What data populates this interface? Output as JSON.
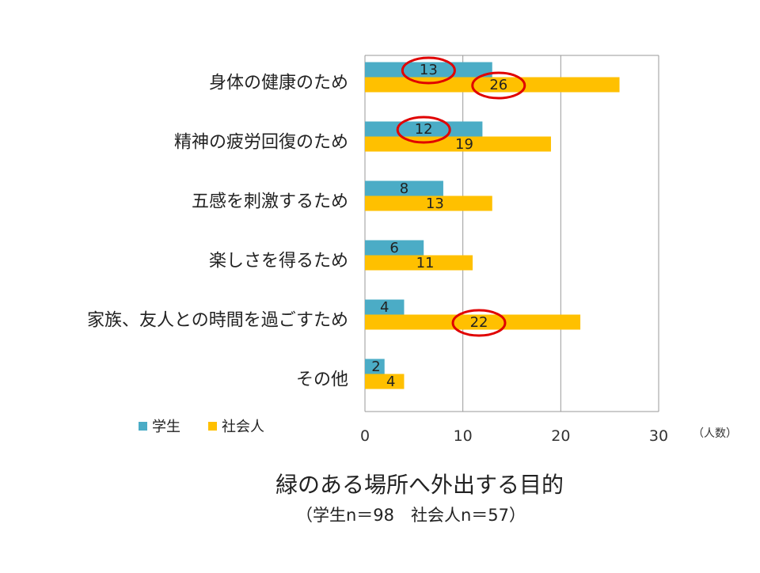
{
  "chart_data": {
    "type": "bar",
    "orientation": "horizontal",
    "title": "緑のある場所へ外出する目的",
    "subtitle": "（学生n＝98　社会人n＝57）",
    "unit_label": "（人数）",
    "categories": [
      "身体の健康のため",
      "精神の疲労回復のため",
      "五感を刺激するため",
      "楽しさを得るため",
      "家族、友人との時間を過ごすため",
      "その他"
    ],
    "series": [
      {
        "name": "学生",
        "color": "#4BACC6",
        "values": [
          13,
          12,
          8,
          6,
          4,
          2
        ]
      },
      {
        "name": "社会人",
        "color": "#FFC000",
        "values": [
          26,
          19,
          13,
          11,
          22,
          4
        ]
      }
    ],
    "xlim": [
      0,
      30
    ],
    "xticks": [
      0,
      10,
      20,
      30
    ],
    "grid": true,
    "legend_position": "bottom-left",
    "highlights": [
      {
        "series": "学生",
        "category": "身体の健康のため"
      },
      {
        "series": "社会人",
        "category": "身体の健康のため"
      },
      {
        "series": "学生",
        "category": "精神の疲労回復のため"
      },
      {
        "series": "社会人",
        "category": "家族、友人との時間を過ごすため"
      }
    ],
    "highlight_color": "#E00000"
  }
}
